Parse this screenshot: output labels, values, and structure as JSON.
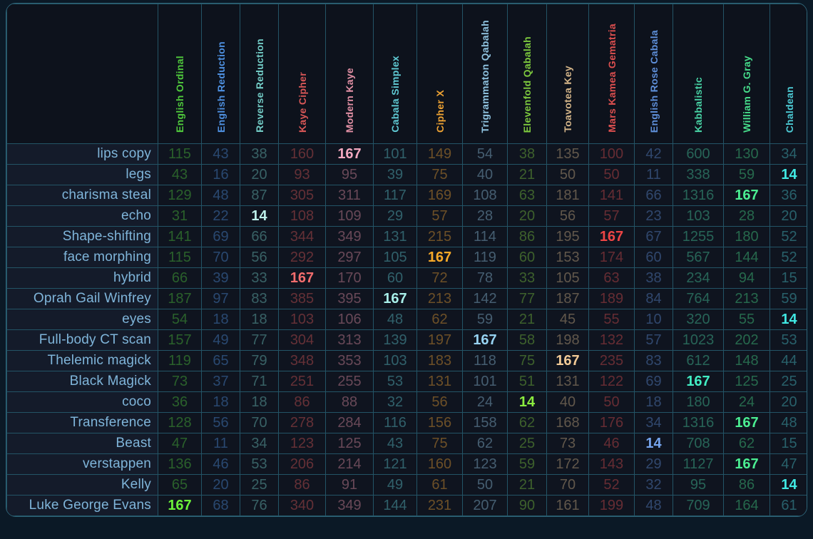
{
  "colors": {
    "page_background": "#0b1926",
    "table_background": "#0d121c",
    "grid_border": "#235466",
    "outer_border": "#2e6478",
    "word_cell_background": "#141b2a",
    "value_cell_background": "#0f141f",
    "word_text": "#7fb5da"
  },
  "table": {
    "columns": [
      {
        "label": "English Ordinal",
        "color": "#4fc93c",
        "highlight_color": "#6bf23a"
      },
      {
        "label": "English Reduction",
        "color": "#4e90e0",
        "highlight_color": "#5f9eea"
      },
      {
        "label": "Reverse Reduction",
        "color": "#72cbc5",
        "highlight_color": "#bdf0ea"
      },
      {
        "label": "Kaye Cipher",
        "color": "#d95757",
        "highlight_color": "#f26d6d"
      },
      {
        "label": "Modern Kaye",
        "color": "#e290a5",
        "highlight_color": "#f2a8bf"
      },
      {
        "label": "Cabala Simplex",
        "color": "#5fc9d3",
        "highlight_color": "#a8efe9"
      },
      {
        "label": "Cipher X",
        "color": "#eda233",
        "highlight_color": "#f7a928"
      },
      {
        "label": "Trigrammaton Qabalah",
        "color": "#8fc3e0",
        "highlight_color": "#97d3f2"
      },
      {
        "label": "Elevenfold Qabalah",
        "color": "#7dc93e",
        "highlight_color": "#8bec3f"
      },
      {
        "label": "Toavotea Key",
        "color": "#d3b488",
        "highlight_color": "#f2ca96"
      },
      {
        "label": "Mars Kamea Gematria",
        "color": "#dd4f4f",
        "highlight_color": "#ed4545"
      },
      {
        "label": "English Rose Cabala",
        "color": "#5e8fd9",
        "highlight_color": "#76a5ee"
      },
      {
        "label": "Kabbalistic",
        "color": "#48d3a5",
        "highlight_color": "#42eec4"
      },
      {
        "label": "William G. Gray",
        "color": "#46dd8b",
        "highlight_color": "#4bee92"
      },
      {
        "label": "Chaldean",
        "color": "#4cc9d3",
        "highlight_color": "#40e8e3"
      }
    ],
    "rows": [
      {
        "label": "lips copy",
        "values": [
          115,
          43,
          38,
          160,
          167,
          101,
          149,
          54,
          38,
          135,
          100,
          42,
          600,
          130,
          34
        ],
        "highlight_col": 4
      },
      {
        "label": "legs",
        "values": [
          43,
          16,
          20,
          93,
          95,
          39,
          75,
          40,
          21,
          50,
          50,
          11,
          338,
          59,
          14
        ],
        "highlight_col": 14
      },
      {
        "label": "charisma steal",
        "values": [
          129,
          48,
          87,
          305,
          311,
          117,
          169,
          108,
          63,
          181,
          141,
          66,
          1316,
          167,
          36
        ],
        "highlight_col": 13
      },
      {
        "label": "echo",
        "values": [
          31,
          22,
          14,
          108,
          109,
          29,
          57,
          28,
          20,
          56,
          57,
          23,
          103,
          28,
          20
        ],
        "highlight_col": 2
      },
      {
        "label": "Shape-shifting",
        "values": [
          141,
          69,
          66,
          344,
          349,
          131,
          215,
          114,
          86,
          195,
          167,
          67,
          1255,
          180,
          52
        ],
        "highlight_col": 10
      },
      {
        "label": "face morphing",
        "values": [
          115,
          70,
          56,
          292,
          297,
          105,
          167,
          119,
          60,
          153,
          174,
          60,
          567,
          144,
          52
        ],
        "highlight_col": 6
      },
      {
        "label": "hybrid",
        "values": [
          66,
          39,
          33,
          167,
          170,
          60,
          72,
          78,
          33,
          105,
          63,
          38,
          234,
          94,
          15
        ],
        "highlight_col": 3
      },
      {
        "label": "Oprah Gail Winfrey",
        "values": [
          187,
          97,
          83,
          385,
          395,
          167,
          213,
          142,
          77,
          187,
          189,
          84,
          764,
          213,
          59
        ],
        "highlight_col": 5
      },
      {
        "label": "eyes",
        "values": [
          54,
          18,
          18,
          103,
          106,
          48,
          62,
          59,
          21,
          45,
          55,
          10,
          320,
          55,
          14
        ],
        "highlight_col": 14
      },
      {
        "label": "Full-body CT scan",
        "values": [
          157,
          49,
          77,
          304,
          313,
          139,
          197,
          167,
          58,
          198,
          132,
          57,
          1023,
          202,
          53
        ],
        "highlight_col": 7
      },
      {
        "label": "Thelemic magick",
        "values": [
          119,
          65,
          79,
          348,
          353,
          103,
          183,
          118,
          75,
          167,
          235,
          83,
          612,
          148,
          44
        ],
        "highlight_col": 9
      },
      {
        "label": "Black Magick",
        "values": [
          73,
          37,
          71,
          251,
          255,
          53,
          131,
          101,
          51,
          131,
          122,
          69,
          167,
          125,
          25
        ],
        "highlight_col": 12
      },
      {
        "label": "coco",
        "values": [
          36,
          18,
          18,
          86,
          88,
          32,
          56,
          24,
          14,
          40,
          50,
          18,
          180,
          24,
          20
        ],
        "highlight_col": 8
      },
      {
        "label": "Transference",
        "values": [
          128,
          56,
          70,
          278,
          284,
          116,
          156,
          158,
          62,
          168,
          176,
          34,
          1316,
          167,
          48
        ],
        "highlight_col": 13
      },
      {
        "label": "Beast",
        "values": [
          47,
          11,
          34,
          123,
          125,
          43,
          75,
          62,
          25,
          73,
          46,
          14,
          708,
          62,
          15
        ],
        "highlight_col": 11
      },
      {
        "label": "verstappen",
        "values": [
          136,
          46,
          53,
          206,
          214,
          121,
          160,
          123,
          59,
          172,
          143,
          29,
          1127,
          167,
          47
        ],
        "highlight_col": 13
      },
      {
        "label": "Kelly",
        "values": [
          65,
          20,
          25,
          86,
          91,
          49,
          61,
          50,
          21,
          70,
          52,
          32,
          95,
          86,
          14
        ],
        "highlight_col": 14
      },
      {
        "label": "Luke George Evans",
        "values": [
          167,
          68,
          76,
          340,
          349,
          144,
          231,
          207,
          90,
          161,
          199,
          48,
          709,
          164,
          61
        ],
        "highlight_col": 0
      }
    ]
  }
}
